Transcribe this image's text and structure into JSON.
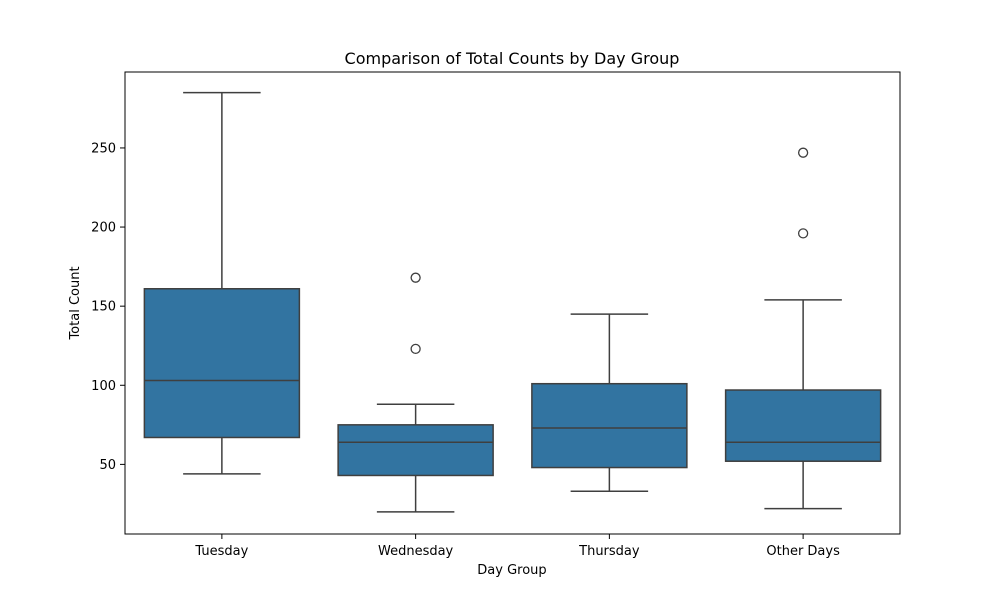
{
  "chart_data": {
    "type": "box",
    "title": "Comparison of Total Counts by Day Group",
    "xlabel": "Day Group",
    "ylabel": "Total Count",
    "categories": [
      "Tuesday",
      "Wednesday",
      "Thursday",
      "Other Days"
    ],
    "ylim": [
      6,
      298
    ],
    "yticks": [
      50,
      100,
      150,
      200,
      250
    ],
    "grid": false,
    "legend": "none",
    "box_color": "#3274a1",
    "line_color": "#3f3f3f",
    "boxes": [
      {
        "category": "Tuesday",
        "whisker_low": 44,
        "q1": 67,
        "median": 103,
        "q3": 161,
        "whisker_high": 285,
        "outliers": []
      },
      {
        "category": "Wednesday",
        "whisker_low": 20,
        "q1": 43,
        "median": 64,
        "q3": 75,
        "whisker_high": 88,
        "outliers": [
          123,
          168
        ]
      },
      {
        "category": "Thursday",
        "whisker_low": 33,
        "q1": 48,
        "median": 73,
        "q3": 101,
        "whisker_high": 145,
        "outliers": []
      },
      {
        "category": "Other Days",
        "whisker_low": 22,
        "q1": 52,
        "median": 64,
        "q3": 97,
        "whisker_high": 154,
        "outliers": [
          196,
          247
        ]
      }
    ]
  }
}
